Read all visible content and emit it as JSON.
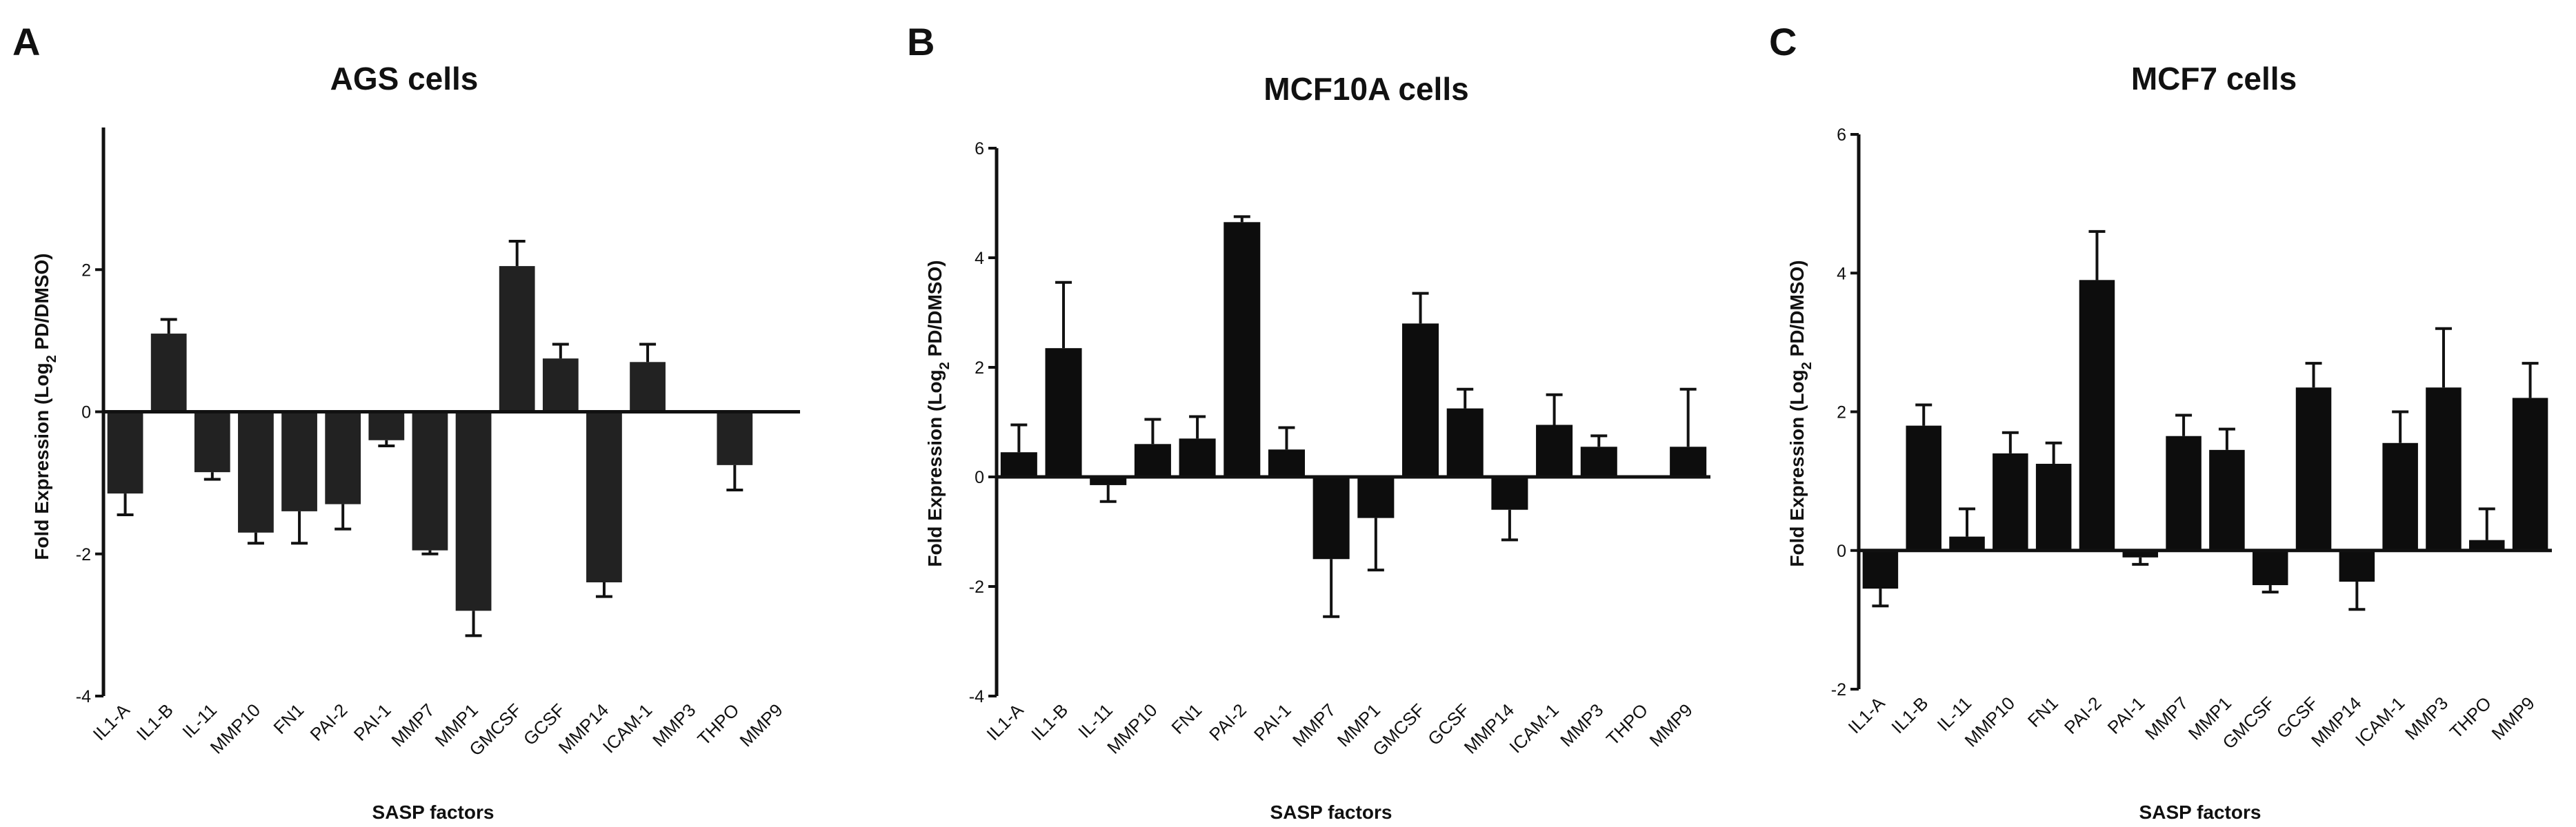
{
  "chart_data": [
    {
      "panel": "A",
      "type": "bar",
      "title": "AGS cells",
      "xlabel": "SASP factors",
      "ylabel_main": "Fold Expression (Log",
      "ylabel_sub": "2",
      "ylabel_tail": " PD/DMSO)",
      "ylim": [
        -4,
        4
      ],
      "yticks": [
        -4,
        -2,
        0,
        2
      ],
      "categories": [
        "IL1-A",
        "IL1-B",
        "IL-11",
        "MMP10",
        "FN1",
        "PAI-2",
        "PAI-1",
        "MMP7",
        "MMP1",
        "GMCSF",
        "GCSF",
        "MMP14",
        "ICAM-1",
        "MMP3",
        "THPO",
        "MMP9"
      ],
      "values": [
        -1.15,
        1.1,
        -0.85,
        -1.7,
        -1.4,
        -1.3,
        -0.4,
        -1.95,
        -2.8,
        2.05,
        0.75,
        -2.4,
        0.7,
        0,
        -0.75,
        0
      ],
      "errors": [
        0.3,
        0.2,
        0.1,
        0.15,
        0.45,
        0.35,
        0.08,
        0.05,
        0.35,
        0.35,
        0.2,
        0.2,
        0.25,
        0,
        0.35,
        0
      ],
      "bar_color": "#222222"
    },
    {
      "panel": "B",
      "type": "bar",
      "title": "MCF10A cells",
      "xlabel": "SASP factors",
      "ylabel_main": "Fold Expression (Log",
      "ylabel_sub": "2",
      "ylabel_tail": " PD/DMSO)",
      "ylim": [
        -4,
        6
      ],
      "yticks": [
        -4,
        -2,
        0,
        2,
        4,
        6
      ],
      "categories": [
        "IL1-A",
        "IL1-B",
        "IL-11",
        "MMP10",
        "FN1",
        "PAI-2",
        "PAI-1",
        "MMP7",
        "MMP1",
        "GMCSF",
        "GCSF",
        "MMP14",
        "ICAM-1",
        "MMP3",
        "THPO",
        "MMP9"
      ],
      "values": [
        0.45,
        2.35,
        -0.15,
        0.6,
        0.7,
        4.65,
        0.5,
        -1.5,
        -0.75,
        2.8,
        1.25,
        -0.6,
        0.95,
        0.55,
        0,
        0.55
      ],
      "errors": [
        0.5,
        1.2,
        0.3,
        0.45,
        0.4,
        0.1,
        0.4,
        1.05,
        0.95,
        0.55,
        0.35,
        0.55,
        0.55,
        0.2,
        0,
        1.05
      ],
      "bar_color": "#0d0d0d"
    },
    {
      "panel": "C",
      "type": "bar",
      "title": "MCF7 cells",
      "xlabel": "SASP factors",
      "ylabel_main": "Fold Expression (Log",
      "ylabel_sub": "2",
      "ylabel_tail": " PD/DMSO)",
      "ylim": [
        -2,
        6
      ],
      "yticks": [
        -2,
        0,
        2,
        4,
        6
      ],
      "categories": [
        "IL1-A",
        "IL1-B",
        "IL-11",
        "MMP10",
        "FN1",
        "PAI-2",
        "PAI-1",
        "MMP7",
        "MMP1",
        "GMCSF",
        "GCSF",
        "MMP14",
        "ICAM-1",
        "MMP3",
        "THPO",
        "MMP9"
      ],
      "values": [
        -0.55,
        1.8,
        0.2,
        1.4,
        1.25,
        3.9,
        -0.1,
        1.65,
        1.45,
        -0.5,
        2.35,
        -0.45,
        1.55,
        2.35,
        0.15,
        2.2
      ],
      "errors": [
        0.25,
        0.3,
        0.4,
        0.3,
        0.3,
        0.7,
        0.1,
        0.3,
        0.3,
        0.1,
        0.35,
        0.4,
        0.45,
        0.85,
        0.45,
        0.5
      ],
      "bar_color": "#0d0d0d"
    }
  ]
}
